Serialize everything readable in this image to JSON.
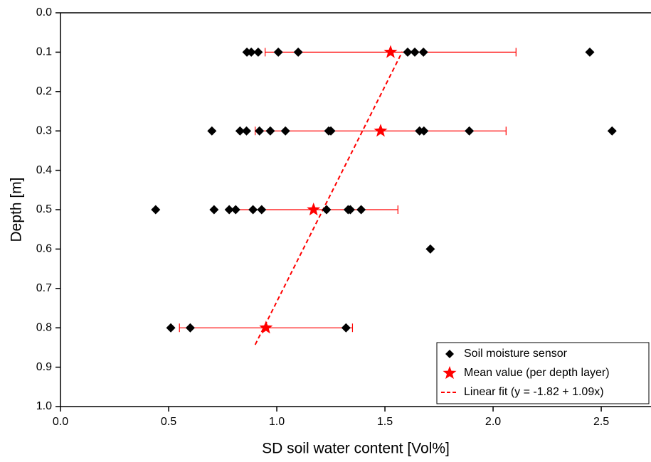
{
  "chart_data": {
    "type": "scatter",
    "xlabel": "SD soil water content [Vol%]",
    "ylabel": "Depth [m]",
    "xlim": [
      0,
      2.73
    ],
    "ylim": [
      0,
      1
    ],
    "y_reversed": true,
    "xticks": [
      {
        "value": 0,
        "label": "0.0"
      },
      0.5,
      {
        "value": 1,
        "label": "1.0"
      },
      1.5,
      {
        "value": 2,
        "label": "2.0"
      },
      2.5
    ],
    "yticks": [
      {
        "value": 0,
        "label": "0.0"
      },
      0.1,
      0.2,
      0.3,
      0.4,
      0.5,
      0.6,
      0.7,
      0.8,
      0.9,
      {
        "value": 1,
        "label": "1.0"
      }
    ],
    "legend": "lower right",
    "series": [
      {
        "name": "Soil moisture sensor",
        "color": "#000000",
        "marker": "diamond",
        "x": [
          0.862,
          0.882,
          0.914,
          1.007,
          1.099,
          1.605,
          1.638,
          1.678,
          2.447,
          0.7,
          0.83,
          0.86,
          0.92,
          0.97,
          1.04,
          1.24,
          1.25,
          1.66,
          1.68,
          1.89,
          2.55,
          0.44,
          0.71,
          0.78,
          0.81,
          0.89,
          0.93,
          1.23,
          1.33,
          1.34,
          1.39,
          1.71,
          0.51,
          0.6,
          1.32
        ],
        "y": [
          0.1,
          0.1,
          0.1,
          0.1,
          0.1,
          0.1,
          0.1,
          0.1,
          0.1,
          0.3,
          0.3,
          0.3,
          0.3,
          0.3,
          0.3,
          0.3,
          0.3,
          0.3,
          0.3,
          0.3,
          0.3,
          0.5,
          0.5,
          0.5,
          0.5,
          0.5,
          0.5,
          0.5,
          0.5,
          0.5,
          0.5,
          0.6,
          0.8,
          0.8,
          0.8
        ]
      },
      {
        "name": "Mean value (per depth layer)",
        "color": "#ff0000",
        "marker": "star",
        "x": [
          1.526,
          1.48,
          1.17,
          0.95
        ],
        "y": [
          0.1,
          0.3,
          0.5,
          0.8
        ],
        "xerr": [
          0.58,
          0.58,
          0.39,
          0.4
        ]
      },
      {
        "name": "Linear fit (y = -1.82 + 1.09x)",
        "color": "#ff0000",
        "marker": "dashed-line",
        "x": [
          0.9,
          1.58
        ],
        "y": [
          0.843,
          0.099
        ]
      }
    ]
  }
}
